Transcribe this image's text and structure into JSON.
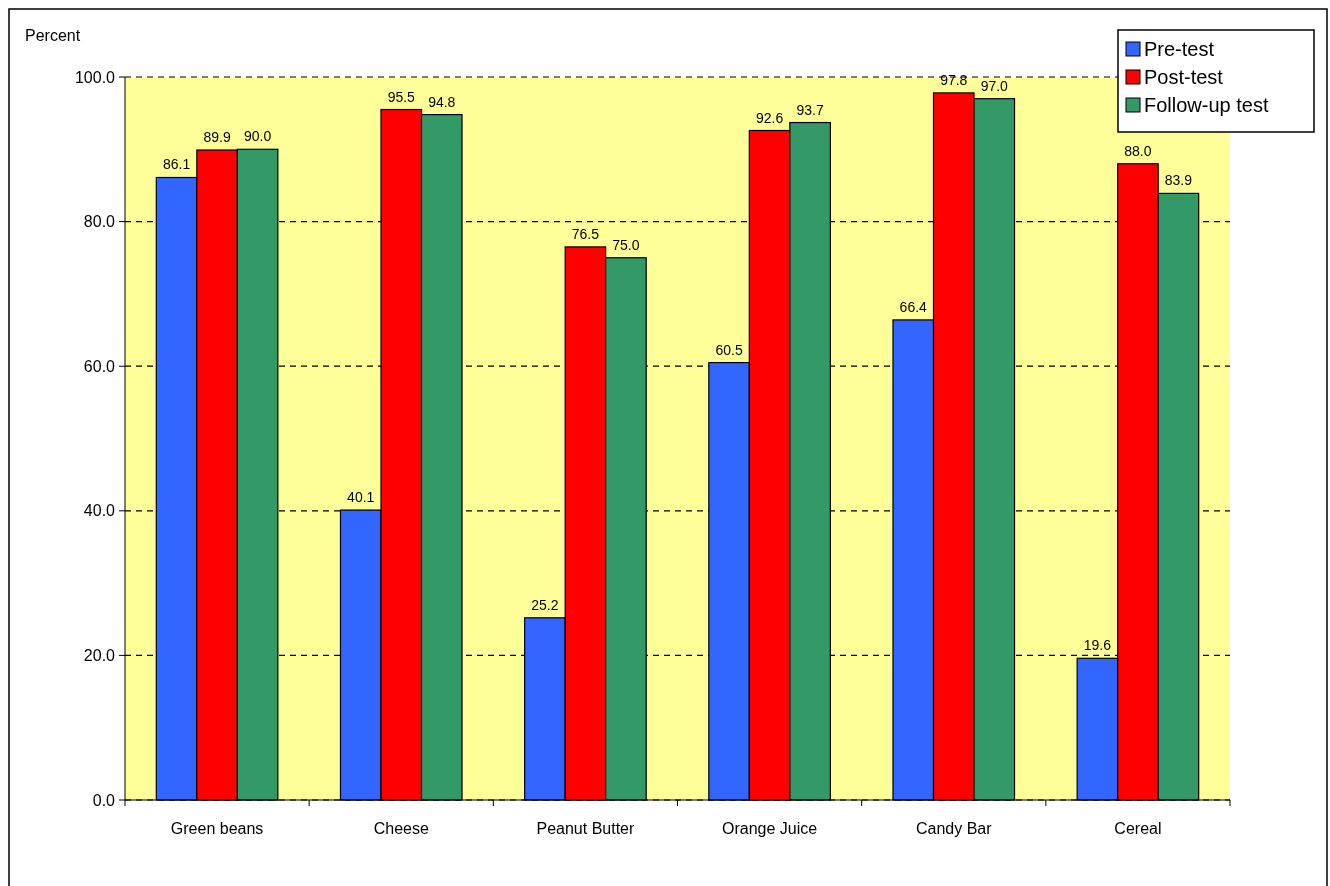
{
  "chart_data": {
    "type": "bar",
    "ylabel": "Percent",
    "categories": [
      "Green beans",
      "Cheese",
      "Peanut Butter",
      "Orange Juice",
      "Candy Bar",
      "Cereal"
    ],
    "series": [
      {
        "name": "Pre-test",
        "color": "#3366ff",
        "values": [
          86.1,
          40.1,
          25.2,
          60.5,
          66.4,
          19.6
        ],
        "value_labels": [
          "86.1",
          "40.1",
          "25.2",
          "60.5",
          "66.4",
          "19.6"
        ]
      },
      {
        "name": "Post-test",
        "color": "#ff0000",
        "values": [
          89.9,
          95.5,
          76.5,
          92.6,
          97.8,
          88.0
        ],
        "value_labels": [
          "89.9",
          "95.5",
          "76.5",
          "92.6",
          "97.8",
          "88.0"
        ]
      },
      {
        "name": "Follow-up test",
        "color": "#339966",
        "values": [
          90.0,
          94.8,
          75.0,
          93.7,
          97.0,
          83.9
        ],
        "value_labels": [
          "90.0",
          "94.8",
          "75.0",
          "93.7",
          "97.0",
          "83.9"
        ]
      }
    ],
    "ylim": [
      0,
      100
    ],
    "yticks": [
      {
        "value": 0,
        "label": "0.0"
      },
      {
        "value": 20,
        "label": "20.0"
      },
      {
        "value": 40,
        "label": "40.0"
      },
      {
        "value": 60,
        "label": "60.0"
      },
      {
        "value": 80,
        "label": "80.0"
      },
      {
        "value": 100,
        "label": "100.0"
      }
    ],
    "grid": "y",
    "legend": "top right"
  }
}
